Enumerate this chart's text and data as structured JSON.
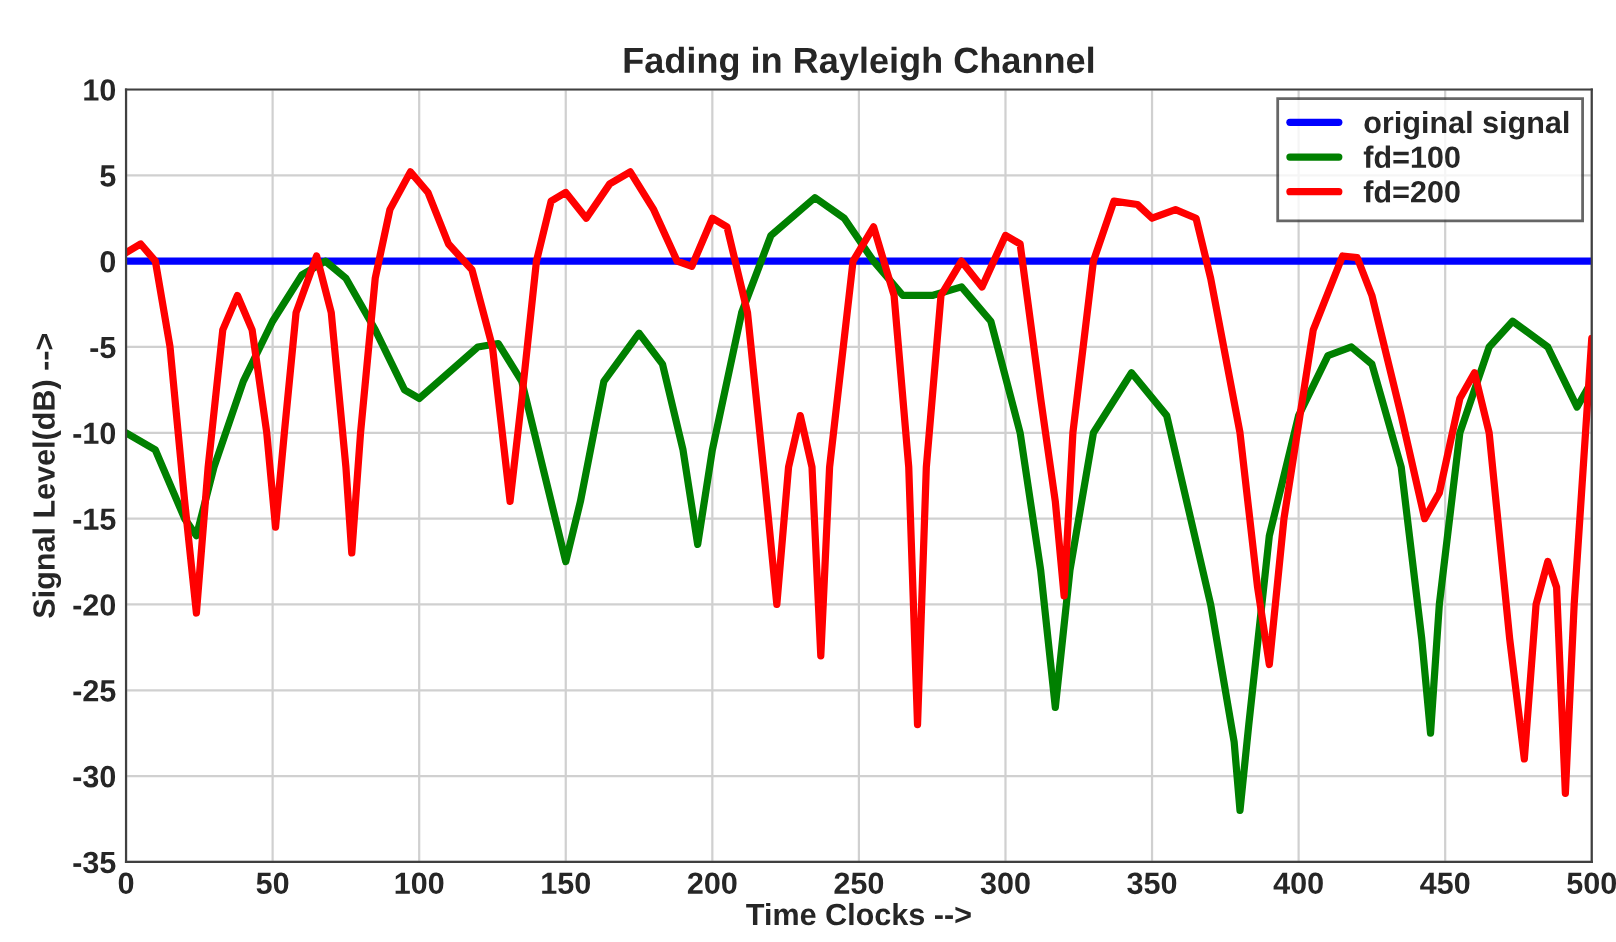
{
  "chart_data": {
    "type": "line",
    "title": "Fading in Rayleigh Channel",
    "xlabel": "Time Clocks -->",
    "ylabel": "Signal Level(dB) -->",
    "xlim": [
      0,
      500
    ],
    "ylim": [
      -35,
      10
    ],
    "xticks": [
      0,
      50,
      100,
      150,
      200,
      250,
      300,
      350,
      400,
      450,
      500
    ],
    "yticks": [
      -35,
      -30,
      -25,
      -20,
      -15,
      -10,
      -5,
      0,
      5,
      10
    ],
    "grid": true,
    "legend": "top right",
    "line_style": "solid",
    "marker": "none",
    "series": [
      {
        "name": "original signal",
        "color": "#0000ff",
        "x": [
          0,
          500
        ],
        "values": [
          0,
          0
        ]
      },
      {
        "name": "fd=100",
        "color": "#008000",
        "x": [
          0,
          10,
          20,
          24,
          30,
          40,
          50,
          60,
          68,
          75,
          85,
          95,
          100,
          110,
          120,
          127,
          135,
          145,
          150,
          155,
          163,
          175,
          183,
          190,
          195,
          200,
          210,
          220,
          235,
          245,
          255,
          265,
          275,
          285,
          295,
          305,
          312,
          317,
          322,
          330,
          343,
          355,
          370,
          378,
          380,
          383,
          390,
          400,
          410,
          418,
          425,
          435,
          442,
          445,
          448,
          455,
          465,
          473,
          485,
          495,
          500
        ],
        "values": [
          -10,
          -11,
          -15,
          -16,
          -12,
          -7,
          -3.5,
          -0.8,
          0,
          -1,
          -4,
          -7.5,
          -8,
          -6.5,
          -5,
          -4.8,
          -7,
          -14,
          -17.5,
          -14,
          -7,
          -4.2,
          -6,
          -11,
          -16.5,
          -11,
          -3,
          1.5,
          3.7,
          2.5,
          0,
          -2,
          -2,
          -1.5,
          -3.5,
          -10,
          -18,
          -26,
          -18,
          -10,
          -6.5,
          -9,
          -20,
          -28,
          -32,
          -27,
          -16,
          -9,
          -5.5,
          -5,
          -6,
          -12,
          -22,
          -27.5,
          -20,
          -10,
          -5,
          -3.5,
          -5,
          -8.5,
          -7
        ]
      },
      {
        "name": "fd=200",
        "color": "#ff0000",
        "x": [
          0,
          5,
          10,
          15,
          20,
          24,
          28,
          33,
          38,
          43,
          48,
          51,
          54,
          58,
          65,
          70,
          75,
          77,
          80,
          85,
          90,
          97,
          103,
          110,
          118,
          125,
          131,
          135,
          140,
          145,
          150,
          157,
          165,
          172,
          180,
          188,
          193,
          200,
          205,
          212,
          218,
          222,
          226,
          230,
          234,
          237,
          240,
          248,
          255,
          262,
          267,
          270,
          273,
          278,
          285,
          292,
          300,
          305,
          312,
          317,
          320,
          323,
          330,
          337,
          345,
          350,
          358,
          365,
          370,
          380,
          386,
          390,
          395,
          405,
          415,
          420,
          425,
          435,
          443,
          448,
          455,
          460,
          465,
          472,
          477,
          481,
          485,
          488,
          491,
          494,
          500
        ],
        "values": [
          0.5,
          1,
          0,
          -5,
          -14,
          -20.5,
          -12,
          -4,
          -2,
          -4,
          -10,
          -15.5,
          -10,
          -3,
          0.3,
          -3,
          -12,
          -17,
          -10,
          -1,
          3,
          5.2,
          4,
          1,
          -0.5,
          -5,
          -14,
          -8,
          0,
          3.5,
          4,
          2.5,
          4.5,
          5.2,
          3,
          0,
          -0.3,
          2.5,
          2,
          -3,
          -13,
          -20,
          -12,
          -9,
          -12,
          -23,
          -12,
          0,
          2,
          -2,
          -12,
          -27,
          -12,
          -2,
          0,
          -1.5,
          1.5,
          1,
          -8,
          -14,
          -19.5,
          -10,
          0,
          3.5,
          3.3,
          2.5,
          3,
          2.5,
          -1,
          -10,
          -19,
          -23.5,
          -15,
          -4,
          0.3,
          0.2,
          -2,
          -9,
          -15,
          -13.5,
          -8,
          -6.5,
          -10,
          -22,
          -29,
          -20,
          -17.5,
          -19,
          -31,
          -20,
          -4.5
        ]
      }
    ]
  }
}
